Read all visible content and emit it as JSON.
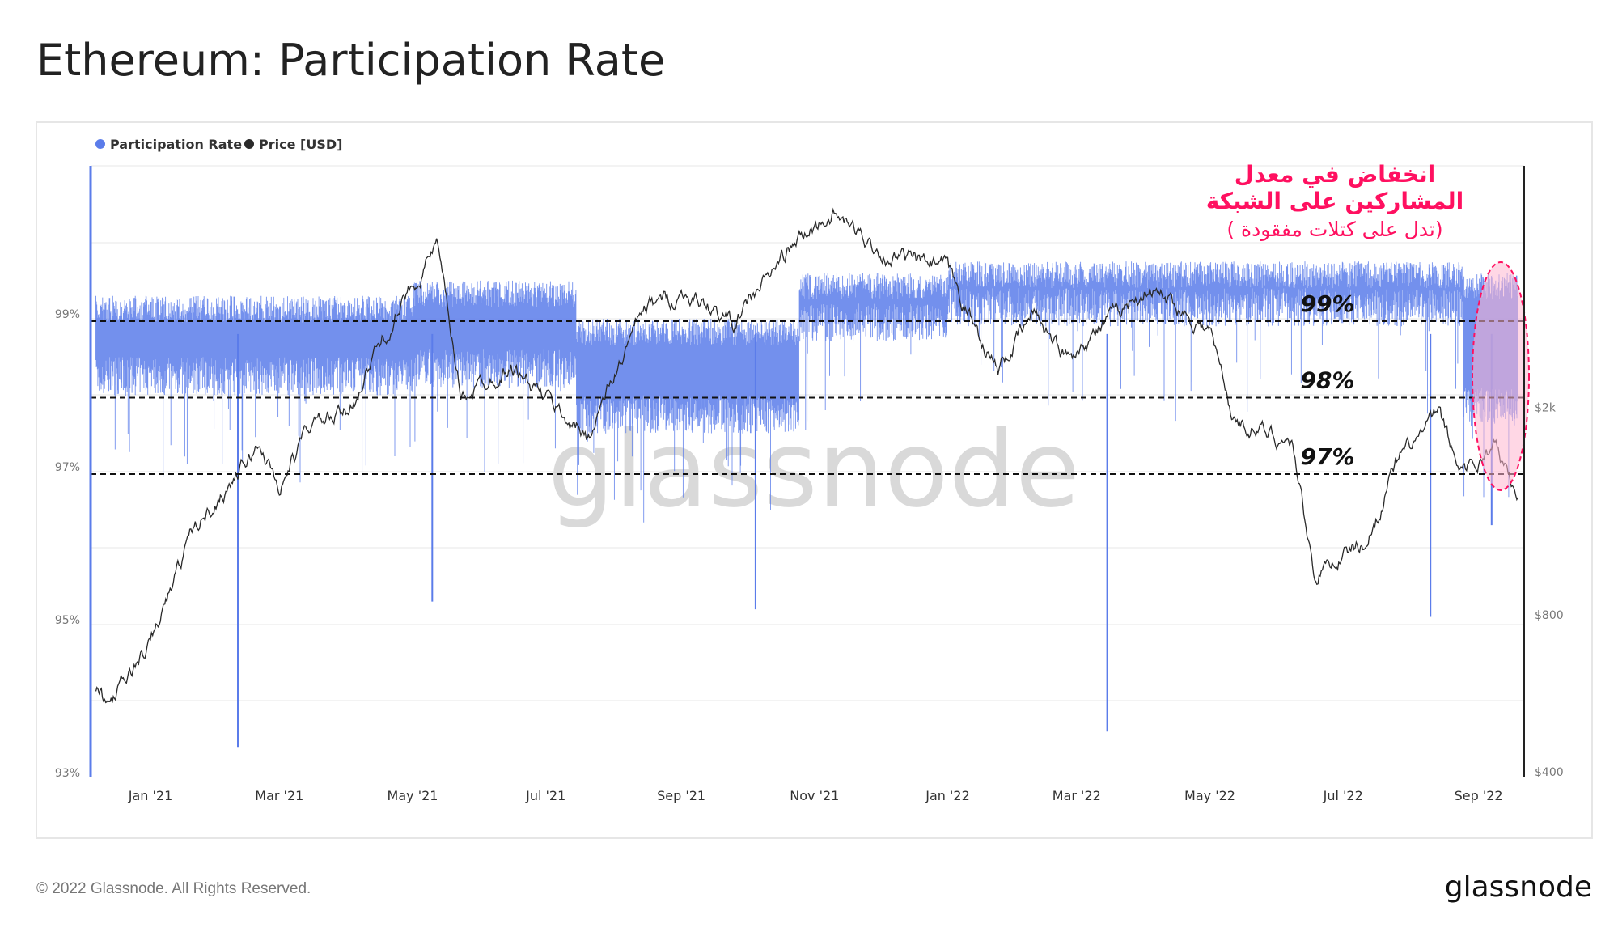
{
  "title": "Ethereum: Participation Rate",
  "footer": {
    "copyright": "© 2022 Glassnode. All Rights Reserved.",
    "logo": "glassnode"
  },
  "watermark": "glassnode",
  "colors": {
    "participation": "#5b7cea",
    "price": "#2a2a2a",
    "annotation": "#ff1060",
    "highlight_fill": "#ffb6cf"
  },
  "annotation": {
    "line1": "انخفاض في معدل",
    "line2": "المشاركين على الشبكة",
    "line3": "( تدل على كتلات مفقودة)"
  },
  "chart_data": {
    "type": "line",
    "title": "Ethereum: Participation Rate",
    "legend": [
      {
        "name": "Participation Rate",
        "color": "#5b7cea"
      },
      {
        "name": "Price [USD]",
        "color": "#2a2a2a"
      }
    ],
    "legend_placement": "top-left",
    "x_range": [
      "2020-12-07",
      "2022-09-19"
    ],
    "x_ticks": [
      "Jan '21",
      "Mar '21",
      "May '21",
      "Jul '21",
      "Sep '21",
      "Nov '21",
      "Jan '22",
      "Mar '22",
      "May '22",
      "Jul '22",
      "Sep '22"
    ],
    "y_left": {
      "ticks": [
        "99%",
        "97%",
        "95%",
        "93%"
      ],
      "range": [
        93,
        101
      ],
      "unit": "%"
    },
    "y_right": {
      "ticks": [
        "$2k",
        "$800",
        "$400"
      ],
      "scale": "log",
      "range": [
        400,
        5500
      ]
    },
    "reference_lines": [
      {
        "value": 99,
        "label": "99%"
      },
      {
        "value": 98,
        "label": "98%"
      },
      {
        "value": 97,
        "label": "97%"
      }
    ],
    "participation_bands": [
      {
        "from": "2020-12-07",
        "to": "2021-05-01",
        "low": 98.0,
        "high": 99.3
      },
      {
        "from": "2021-05-01",
        "to": "2021-07-15",
        "low": 98.1,
        "high": 99.5
      },
      {
        "from": "2021-07-15",
        "to": "2021-10-25",
        "low": 97.5,
        "high": 99.0
      },
      {
        "from": "2021-10-25",
        "to": "2022-01-01",
        "low": 98.7,
        "high": 99.6
      },
      {
        "from": "2022-01-01",
        "to": "2022-08-25",
        "low": 98.9,
        "high": 99.75
      },
      {
        "from": "2022-08-25",
        "to": "2022-09-19",
        "low": 97.6,
        "high": 99.6
      }
    ],
    "participation_dips": [
      {
        "date": "2021-02-10",
        "value": 93.4
      },
      {
        "date": "2021-05-10",
        "value": 95.3
      },
      {
        "date": "2021-10-05",
        "value": 95.2
      },
      {
        "date": "2022-03-15",
        "value": 93.6
      },
      {
        "date": "2022-08-10",
        "value": 95.1
      },
      {
        "date": "2022-09-07",
        "value": 96.3
      }
    ],
    "price": [
      {
        "date": "2020-12-07",
        "value": 580
      },
      {
        "date": "2020-12-12",
        "value": 530
      },
      {
        "date": "2021-01-01",
        "value": 700
      },
      {
        "date": "2021-01-20",
        "value": 1150
      },
      {
        "date": "2021-02-20",
        "value": 1700
      },
      {
        "date": "2021-03-01",
        "value": 1400
      },
      {
        "date": "2021-03-15",
        "value": 1850
      },
      {
        "date": "2021-04-01",
        "value": 1950
      },
      {
        "date": "2021-04-15",
        "value": 2600
      },
      {
        "date": "2021-05-12",
        "value": 4100
      },
      {
        "date": "2021-05-23",
        "value": 2100
      },
      {
        "date": "2021-06-15",
        "value": 2400
      },
      {
        "date": "2021-07-20",
        "value": 1750
      },
      {
        "date": "2021-08-15",
        "value": 3100
      },
      {
        "date": "2021-09-03",
        "value": 3300
      },
      {
        "date": "2021-09-25",
        "value": 2900
      },
      {
        "date": "2021-10-20",
        "value": 4000
      },
      {
        "date": "2021-11-09",
        "value": 4700
      },
      {
        "date": "2021-12-04",
        "value": 3900
      },
      {
        "date": "2021-12-31",
        "value": 3700
      },
      {
        "date": "2022-01-24",
        "value": 2350
      },
      {
        "date": "2022-02-10",
        "value": 3050
      },
      {
        "date": "2022-02-24",
        "value": 2500
      },
      {
        "date": "2022-04-03",
        "value": 3400
      },
      {
        "date": "2022-05-01",
        "value": 2800
      },
      {
        "date": "2022-05-12",
        "value": 1900
      },
      {
        "date": "2022-06-08",
        "value": 1700
      },
      {
        "date": "2022-06-18",
        "value": 950
      },
      {
        "date": "2022-07-01",
        "value": 1050
      },
      {
        "date": "2022-07-12",
        "value": 1100
      },
      {
        "date": "2022-07-25",
        "value": 1550
      },
      {
        "date": "2022-08-14",
        "value": 1950
      },
      {
        "date": "2022-08-22",
        "value": 1550
      },
      {
        "date": "2022-09-01",
        "value": 1570
      },
      {
        "date": "2022-09-08",
        "value": 1700
      },
      {
        "date": "2022-09-19",
        "value": 1330
      }
    ]
  }
}
